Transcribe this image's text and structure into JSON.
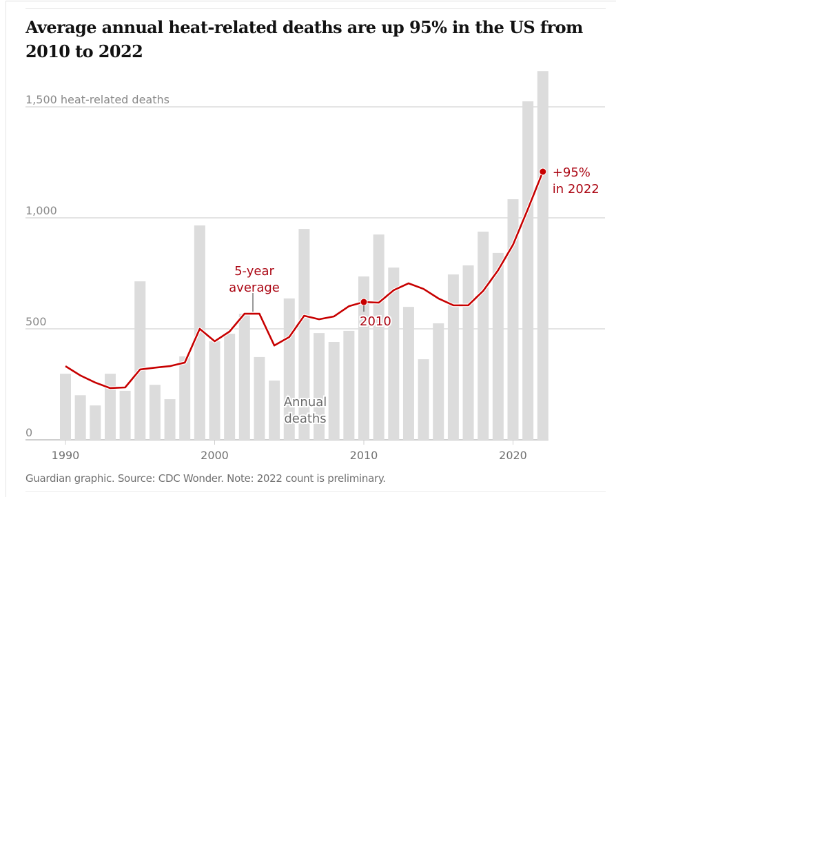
{
  "chart_data": {
    "type": "bar",
    "title": "Average annual heat-related deaths are up 95% in the US from 2010 to 2022",
    "xlabel": "",
    "ylabel": "heat-related deaths",
    "ylim": [
      0,
      1500
    ],
    "grid": true,
    "y_ticks": [
      {
        "value": 0,
        "label": "0"
      },
      {
        "value": 500,
        "label": "500"
      },
      {
        "value": 1000,
        "label": "1,000"
      },
      {
        "value": 1500,
        "label": "1,500 heat-related deaths"
      }
    ],
    "x_ticks": [
      {
        "value": 1990,
        "label": "1990"
      },
      {
        "value": 2000,
        "label": "2000"
      },
      {
        "value": 2010,
        "label": "2010"
      },
      {
        "value": 2020,
        "label": "2020"
      }
    ],
    "x": [
      1990,
      1991,
      1992,
      1993,
      1994,
      1995,
      1996,
      1997,
      1998,
      1999,
      2000,
      2001,
      2002,
      2003,
      2004,
      2005,
      2006,
      2007,
      2008,
      2009,
      2010,
      2011,
      2012,
      2013,
      2014,
      2015,
      2016,
      2017,
      2018,
      2019,
      2020,
      2021,
      2022
    ],
    "series": [
      {
        "name": "Annual deaths",
        "type": "bar",
        "color": "#dcdcdc",
        "values": [
          298,
          201,
          155,
          298,
          221,
          714,
          248,
          183,
          376,
          966,
          444,
          478,
          568,
          373,
          267,
          637,
          950,
          481,
          441,
          491,
          736,
          925,
          776,
          599,
          363,
          525,
          745,
          786,
          938,
          842,
          1084,
          1525,
          1661
        ]
      },
      {
        "name": "5-year average",
        "type": "line",
        "color": "#c70000",
        "values": [
          332,
          290,
          258,
          233,
          236,
          317,
          325,
          332,
          348,
          500,
          444,
          488,
          568,
          568,
          425,
          463,
          559,
          543,
          556,
          602,
          621,
          618,
          674,
          705,
          680,
          637,
          606,
          606,
          671,
          764,
          879,
          1040,
          1208
        ]
      }
    ],
    "annotations": {
      "line_label": [
        "5-year",
        "average"
      ],
      "bar_label": [
        "Annual",
        "deaths"
      ],
      "start_point": {
        "year": 2010,
        "label": "2010"
      },
      "end_point": {
        "year": 2022,
        "label_lines": [
          "+95%",
          "in 2022"
        ]
      }
    }
  },
  "header": {
    "title": "Average annual heat-related deaths are up 95% in the US from 2010 to 2022"
  },
  "footer": {
    "source": "Guardian graphic. Source: CDC Wonder. Note: 2022 count is preliminary."
  }
}
